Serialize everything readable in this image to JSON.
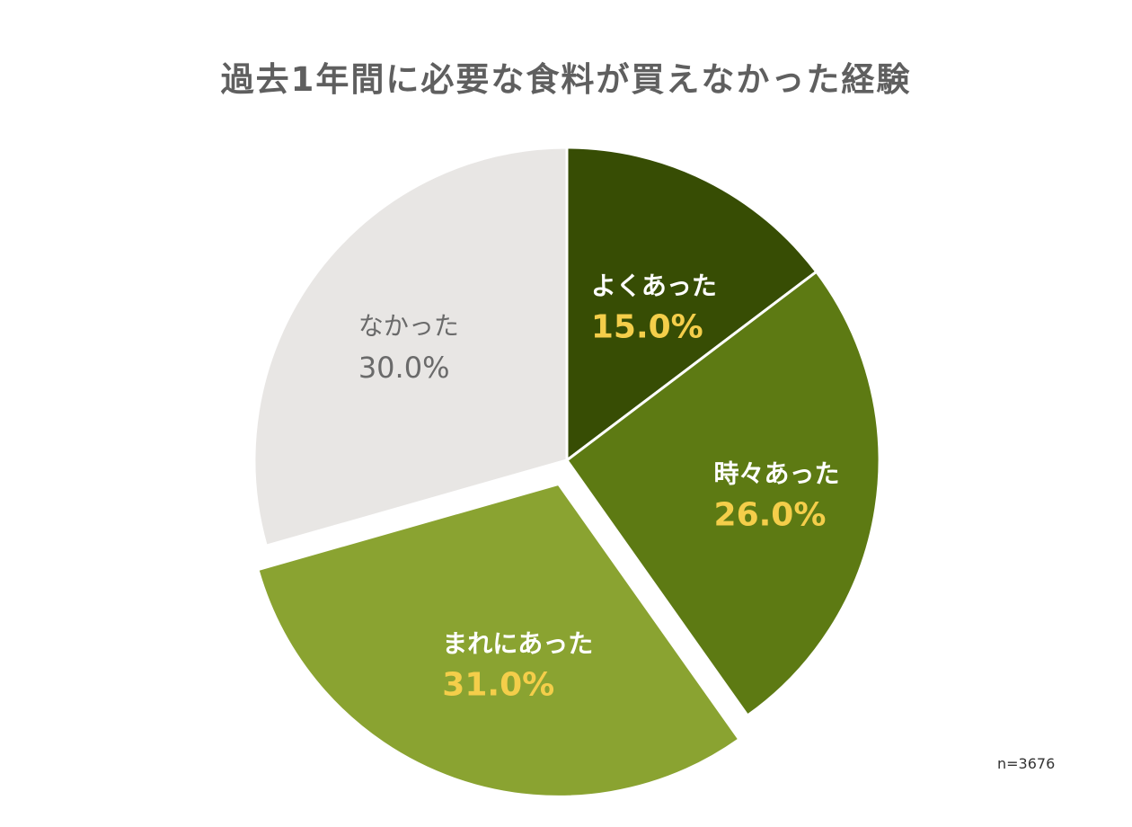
{
  "title": "過去1年間に必要な食料が買えなかった経験",
  "note": "n=3676",
  "chart_data": {
    "type": "pie",
    "title": "過去1年間に必要な食料が買えなかった経験",
    "slices": [
      {
        "label": "よくあった",
        "value": 15.0,
        "value_label": "15.0%",
        "color": "#374d04",
        "exploded": false
      },
      {
        "label": "時々あった",
        "value": 26.0,
        "value_label": "26.0%",
        "color": "#5d7a13",
        "exploded": false
      },
      {
        "label": "まれにあった",
        "value": 31.0,
        "value_label": "31.0%",
        "color": "#8aa331",
        "exploded": true
      },
      {
        "label": "なかった",
        "value": 30.0,
        "value_label": "30.0%",
        "color": "#e8e6e4",
        "exploded": false
      }
    ],
    "start_angle": "12 o'clock",
    "direction": "clockwise",
    "legend": "none",
    "label_colors": {
      "category": "#ffffff",
      "value": "#f4ce4a",
      "muted": "#6a6a6a"
    }
  }
}
